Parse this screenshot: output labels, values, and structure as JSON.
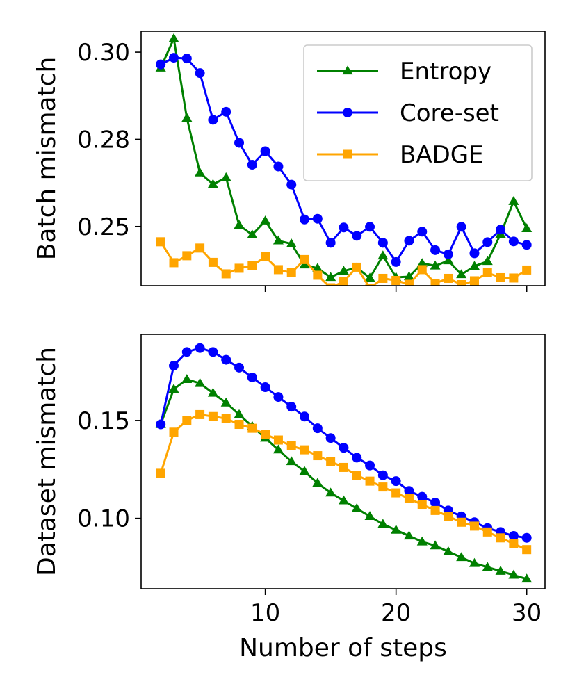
{
  "chart_data": [
    {
      "type": "line",
      "ylabel": "Batch mismatch",
      "xlabel": "",
      "xlim": [
        0.5,
        31.4
      ],
      "ylim": [
        0.233,
        0.306
      ],
      "yticks": [
        0.25,
        0.275,
        0.3
      ],
      "ytick_labels": [
        "0.25",
        "0.28",
        "0.30"
      ],
      "xticks": [
        10,
        20,
        30
      ],
      "xtick_labels": [
        "",
        "",
        ""
      ],
      "legend": {
        "position": "top-right",
        "entries": [
          "Entropy",
          "Core-set",
          "BADGE"
        ]
      },
      "x": [
        2,
        3,
        4,
        5,
        6,
        7,
        8,
        9,
        10,
        11,
        12,
        13,
        14,
        15,
        16,
        17,
        18,
        19,
        20,
        21,
        22,
        23,
        24,
        25,
        26,
        27,
        28,
        29,
        30
      ],
      "series": [
        {
          "name": "Entropy",
          "color": "#008000",
          "marker": "triangle",
          "values": [
            0.2955,
            0.3039,
            0.2811,
            0.2654,
            0.2621,
            0.264,
            0.2504,
            0.2476,
            0.2516,
            0.2459,
            0.245,
            0.239,
            0.238,
            0.2354,
            0.2372,
            0.2382,
            0.2352,
            0.2416,
            0.2354,
            0.2356,
            0.2394,
            0.2387,
            0.2402,
            0.2362,
            0.2386,
            0.24,
            0.2478,
            0.2572,
            0.2494
          ]
        },
        {
          "name": "Core-set",
          "color": "#0000ff",
          "marker": "circle",
          "values": [
            0.2965,
            0.2984,
            0.2982,
            0.294,
            0.2806,
            0.2829,
            0.274,
            0.2677,
            0.2716,
            0.2672,
            0.262,
            0.252,
            0.2522,
            0.2453,
            0.2497,
            0.2473,
            0.2499,
            0.2453,
            0.2398,
            0.2459,
            0.2485,
            0.2432,
            0.242,
            0.2499,
            0.2423,
            0.2455,
            0.2491,
            0.2457,
            0.2447
          ]
        },
        {
          "name": "BADGE",
          "color": "#ffa500",
          "marker": "square",
          "values": [
            0.2456,
            0.2396,
            0.2416,
            0.2438,
            0.2397,
            0.2364,
            0.238,
            0.2387,
            0.2413,
            0.2376,
            0.2367,
            0.2405,
            0.236,
            0.2324,
            0.2342,
            0.2383,
            0.2323,
            0.2351,
            0.2345,
            0.2334,
            0.2376,
            0.2337,
            0.2351,
            0.2333,
            0.2344,
            0.2367,
            0.2353,
            0.2352,
            0.2375
          ]
        }
      ]
    },
    {
      "type": "line",
      "ylabel": "Dataset mismatch",
      "xlabel": "Number of steps",
      "xlim": [
        0.5,
        31.4
      ],
      "ylim": [
        0.064,
        0.194
      ],
      "yticks": [
        0.1,
        0.15
      ],
      "ytick_labels": [
        "0.10",
        "0.15"
      ],
      "xticks": [
        10,
        20,
        30
      ],
      "xtick_labels": [
        "10",
        "20",
        "30"
      ],
      "x": [
        2,
        3,
        4,
        5,
        6,
        7,
        8,
        9,
        10,
        11,
        12,
        13,
        14,
        15,
        16,
        17,
        18,
        19,
        20,
        21,
        22,
        23,
        24,
        25,
        26,
        27,
        28,
        29,
        30
      ],
      "series": [
        {
          "name": "Entropy",
          "color": "#008000",
          "marker": "triangle",
          "values": [
            0.148,
            0.166,
            0.171,
            0.169,
            0.164,
            0.159,
            0.153,
            0.147,
            0.141,
            0.135,
            0.129,
            0.124,
            0.118,
            0.113,
            0.109,
            0.105,
            0.101,
            0.097,
            0.094,
            0.091,
            0.088,
            0.086,
            0.083,
            0.08,
            0.077,
            0.075,
            0.073,
            0.071,
            0.069
          ]
        },
        {
          "name": "Core-set",
          "color": "#0000ff",
          "marker": "circle",
          "values": [
            0.148,
            0.178,
            0.185,
            0.187,
            0.185,
            0.181,
            0.177,
            0.172,
            0.167,
            0.162,
            0.157,
            0.152,
            0.146,
            0.141,
            0.136,
            0.131,
            0.127,
            0.122,
            0.119,
            0.114,
            0.111,
            0.108,
            0.104,
            0.101,
            0.098,
            0.095,
            0.093,
            0.091,
            0.09
          ]
        },
        {
          "name": "BADGE",
          "color": "#ffa500",
          "marker": "square",
          "values": [
            0.123,
            0.144,
            0.15,
            0.153,
            0.152,
            0.151,
            0.148,
            0.146,
            0.143,
            0.14,
            0.137,
            0.135,
            0.132,
            0.129,
            0.126,
            0.122,
            0.119,
            0.116,
            0.113,
            0.11,
            0.107,
            0.104,
            0.101,
            0.098,
            0.096,
            0.093,
            0.09,
            0.087,
            0.084
          ]
        }
      ]
    }
  ]
}
